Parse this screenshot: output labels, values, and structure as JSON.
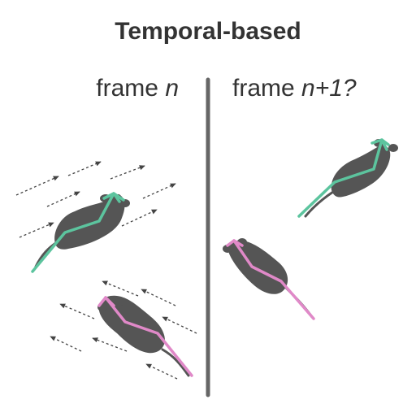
{
  "title": "Temporal-based",
  "panels": [
    {
      "label_prefix": "frame ",
      "label_var": "n"
    },
    {
      "label_prefix": "frame ",
      "label_var": "n+1?"
    }
  ],
  "colors": {
    "text": "#333333",
    "divider": "#666666",
    "mouse_body": "#555555",
    "skeleton_green": "#5cc49e",
    "skeleton_pink": "#e089c8",
    "motion_arrow": "#444444"
  }
}
